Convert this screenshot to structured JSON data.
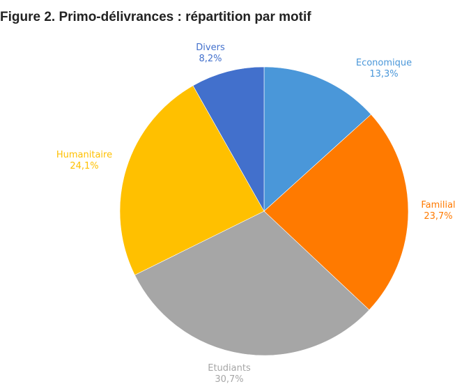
{
  "title": "Figure 2. Primo-délivrances : répartition par motif",
  "chart_data": {
    "type": "pie",
    "title": "Figure 2. Primo-délivrances : répartition par motif",
    "slices": [
      {
        "name": "Economique",
        "value": 13.3,
        "label": "13,3%",
        "color": "#4a97d9"
      },
      {
        "name": "Familial",
        "value": 23.7,
        "label": "23,7%",
        "color": "#ff7a00"
      },
      {
        "name": "Etudiants",
        "value": 30.7,
        "label": "30,7%",
        "color": "#a6a6a6"
      },
      {
        "name": "Humanitaire",
        "value": 24.1,
        "label": "24,1%",
        "color": "#ffc000"
      },
      {
        "name": "Divers",
        "value": 8.2,
        "label": "8,2%",
        "color": "#4270cc"
      }
    ],
    "start_angle": "12 o'clock",
    "direction": "clockwise",
    "legend": "none",
    "label_placement": "outside"
  }
}
